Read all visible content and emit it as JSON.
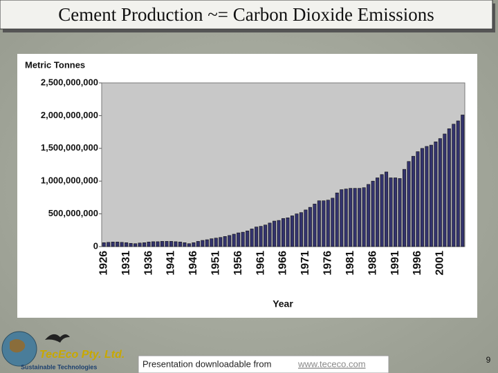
{
  "slide": {
    "title": "Cement Production ~= Carbon Dioxide Emissions",
    "footer_text": "Presentation downloadable from",
    "footer_link": "www.tececo.com",
    "page_number": "9",
    "logo_name": "TecEco Pty. Ltd.",
    "logo_tagline": "Sustainable Technologies"
  },
  "chart_data": {
    "type": "bar",
    "y_label": "Metric Tonnes",
    "x_label": "Year",
    "color": "#33336e",
    "grid": false,
    "categories": [
      "1926",
      null,
      null,
      null,
      null,
      "1931",
      null,
      null,
      null,
      null,
      "1936",
      null,
      null,
      null,
      null,
      "1941",
      null,
      null,
      null,
      null,
      "1946",
      null,
      null,
      null,
      null,
      "1951",
      null,
      null,
      null,
      null,
      "1956",
      null,
      null,
      null,
      null,
      "1961",
      null,
      null,
      null,
      null,
      "1966",
      null,
      null,
      null,
      null,
      "1971",
      null,
      null,
      null,
      null,
      "1976",
      null,
      null,
      null,
      null,
      "1981",
      null,
      null,
      null,
      null,
      "1986",
      null,
      null,
      null,
      null,
      "1991",
      null,
      null,
      null,
      null,
      "1996",
      null,
      null,
      null,
      null,
      "2001",
      null,
      null,
      null,
      null,
      null
    ],
    "values": [
      60000000,
      65000000,
      70000000,
      70000000,
      65000000,
      60000000,
      50000000,
      45000000,
      55000000,
      60000000,
      70000000,
      75000000,
      75000000,
      80000000,
      80000000,
      80000000,
      75000000,
      70000000,
      60000000,
      45000000,
      60000000,
      80000000,
      95000000,
      105000000,
      120000000,
      130000000,
      140000000,
      155000000,
      170000000,
      190000000,
      210000000,
      220000000,
      240000000,
      270000000,
      300000000,
      310000000,
      330000000,
      360000000,
      390000000,
      400000000,
      430000000,
      440000000,
      470000000,
      500000000,
      520000000,
      560000000,
      600000000,
      650000000,
      700000000,
      700000000,
      710000000,
      740000000,
      820000000,
      870000000,
      880000000,
      890000000,
      890000000,
      890000000,
      900000000,
      950000000,
      1000000000,
      1050000000,
      1100000000,
      1140000000,
      1050000000,
      1050000000,
      1040000000,
      1180000000,
      1300000000,
      1380000000,
      1450000000,
      1500000000,
      1530000000,
      1550000000,
      1600000000,
      1650000000,
      1720000000,
      1800000000,
      1870000000,
      1920000000,
      2010000000
    ],
    "ylim": [
      0,
      2500000000
    ],
    "yticks": [
      0,
      {
        "value": 500000000,
        "label": "500,000,000"
      },
      {
        "value": 1000000000,
        "label": "1,000,000,000"
      },
      {
        "value": 1500000000,
        "label": "1,500,000,000"
      },
      {
        "value": 2000000000,
        "label": "2,000,000,000"
      },
      {
        "value": 2500000000,
        "label": "2,500,000,000"
      }
    ]
  }
}
